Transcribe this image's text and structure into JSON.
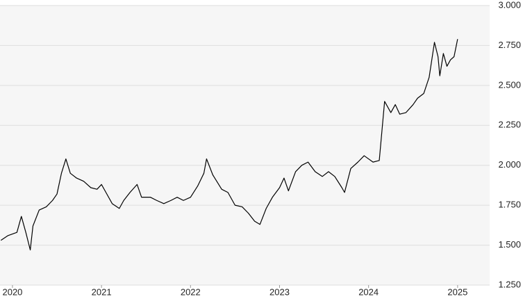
{
  "chart_data": {
    "type": "line",
    "x": [
      2019.87,
      2019.95,
      2020.05,
      2020.1,
      2020.15,
      2020.2,
      2020.23,
      2020.3,
      2020.38,
      2020.45,
      2020.5,
      2020.55,
      2020.6,
      2020.65,
      2020.72,
      2020.8,
      2020.88,
      2020.95,
      2021.0,
      2021.05,
      2021.12,
      2021.2,
      2021.25,
      2021.32,
      2021.4,
      2021.45,
      2021.55,
      2021.62,
      2021.7,
      2021.78,
      2021.85,
      2021.92,
      2022.0,
      2022.08,
      2022.15,
      2022.18,
      2022.25,
      2022.35,
      2022.42,
      2022.5,
      2022.58,
      2022.65,
      2022.72,
      2022.78,
      2022.85,
      2022.92,
      2023.0,
      2023.05,
      2023.1,
      2023.18,
      2023.25,
      2023.32,
      2023.4,
      2023.48,
      2023.55,
      2023.62,
      2023.7,
      2023.73,
      2023.8,
      2023.88,
      2023.95,
      2024.05,
      2024.12,
      2024.18,
      2024.25,
      2024.3,
      2024.35,
      2024.42,
      2024.5,
      2024.55,
      2024.62,
      2024.68,
      2024.74,
      2024.78,
      2024.8,
      2024.84,
      2024.88,
      2024.92,
      2024.96,
      2025.0
    ],
    "series": [
      {
        "color": "#000000",
        "values": [
          1.53,
          1.56,
          1.58,
          1.68,
          1.58,
          1.47,
          1.62,
          1.72,
          1.74,
          1.78,
          1.82,
          1.95,
          2.04,
          1.95,
          1.92,
          1.9,
          1.86,
          1.85,
          1.88,
          1.83,
          1.76,
          1.73,
          1.78,
          1.83,
          1.88,
          1.8,
          1.8,
          1.78,
          1.76,
          1.78,
          1.8,
          1.78,
          1.8,
          1.87,
          1.95,
          2.04,
          1.94,
          1.85,
          1.83,
          1.75,
          1.74,
          1.7,
          1.65,
          1.63,
          1.73,
          1.8,
          1.86,
          1.92,
          1.84,
          1.96,
          2.0,
          2.02,
          1.96,
          1.93,
          1.96,
          1.93,
          1.86,
          1.83,
          1.98,
          2.02,
          2.06,
          2.02,
          2.03,
          2.4,
          2.33,
          2.38,
          2.32,
          2.33,
          2.38,
          2.42,
          2.45,
          2.55,
          2.77,
          2.68,
          2.56,
          2.7,
          2.62,
          2.66,
          2.68,
          2.79
        ]
      }
    ],
    "xlim": [
      2019.86,
      2025.36
    ],
    "xticks": [
      2020,
      2021,
      2022,
      2023,
      2024,
      2025
    ],
    "ylim": [
      1.25,
      3.0
    ],
    "yticks": [
      {
        "value": 1.25,
        "label": "1.250"
      },
      {
        "value": 1.5,
        "label": "1.500"
      },
      {
        "value": 1.75,
        "label": "1.750"
      },
      {
        "value": 2.0,
        "label": "2.000"
      },
      {
        "value": 2.25,
        "label": "2.250"
      },
      {
        "value": 2.5,
        "label": "2.500"
      },
      {
        "value": 2.75,
        "label": "2.750"
      },
      {
        "value": 3.0,
        "label": "3.000"
      }
    ],
    "grid": true
  }
}
